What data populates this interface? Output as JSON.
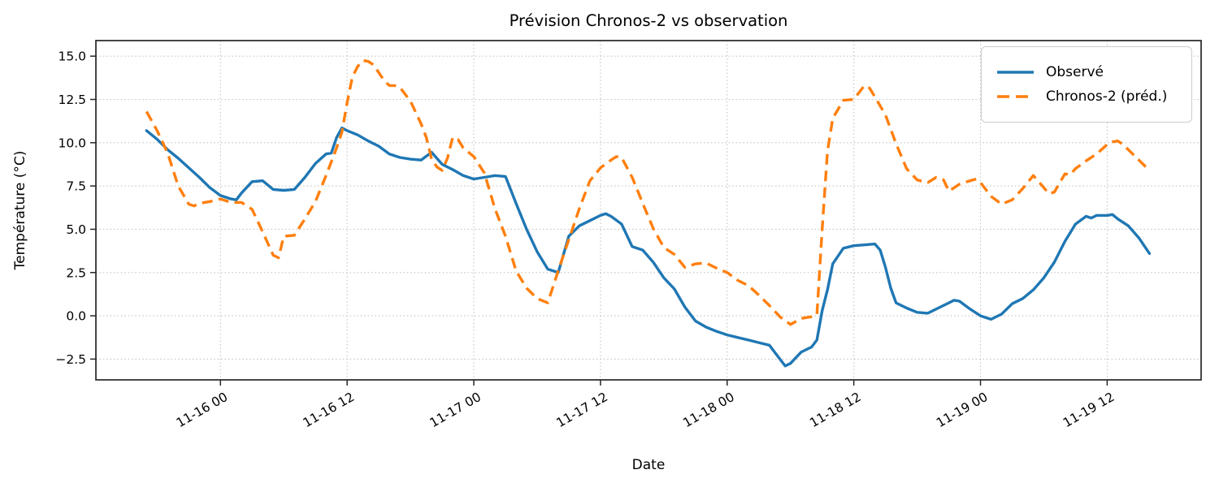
{
  "window": {
    "title": "Prévision Chronos-2 vs observation"
  },
  "chart_data": {
    "type": "line",
    "title": "Prévision Chronos-2 vs observation",
    "xlabel": "Date",
    "ylabel": "Température (°C)",
    "grid": true,
    "legend_position": "upper right",
    "xlim": [
      -4.8,
      99.9
    ],
    "ylim": [
      -3.7,
      15.9
    ],
    "x_axis_note": "x values are hours; 0 = first sample, ticks every 12 h",
    "xticks": [
      {
        "t": 7,
        "label": "11-16 00"
      },
      {
        "t": 19,
        "label": "11-16 12"
      },
      {
        "t": 31,
        "label": "11-17 00"
      },
      {
        "t": 43,
        "label": "11-17 12"
      },
      {
        "t": 55,
        "label": "11-18 00"
      },
      {
        "t": 67,
        "label": "11-18 12"
      },
      {
        "t": 79,
        "label": "11-19 00"
      },
      {
        "t": 91,
        "label": "11-19 12"
      }
    ],
    "yticks": [
      {
        "v": 15.0,
        "label": "15.0"
      },
      {
        "v": 12.5,
        "label": "12.5"
      },
      {
        "v": 10.0,
        "label": "10.0"
      },
      {
        "v": 7.5,
        "label": "7.5"
      },
      {
        "v": 5.0,
        "label": "5.0"
      },
      {
        "v": 2.5,
        "label": "2.5"
      },
      {
        "v": 0.0,
        "label": "0.0"
      },
      {
        "v": -2.5,
        "label": "−2.5"
      }
    ],
    "series": [
      {
        "name": "Observé",
        "color": "#1f77b4",
        "style": "solid",
        "line_width": 3.4,
        "points": [
          [
            0,
            10.7
          ],
          [
            1,
            10.2
          ],
          [
            2,
            9.6
          ],
          [
            3,
            9.1
          ],
          [
            4,
            8.55
          ],
          [
            5,
            8.0
          ],
          [
            6,
            7.4
          ],
          [
            7,
            6.95
          ],
          [
            8,
            6.75
          ],
          [
            8.5,
            6.7
          ],
          [
            9,
            7.1
          ],
          [
            10,
            7.75
          ],
          [
            11,
            7.8
          ],
          [
            12,
            7.3
          ],
          [
            13,
            7.25
          ],
          [
            14,
            7.3
          ],
          [
            15,
            8.0
          ],
          [
            16,
            8.8
          ],
          [
            17,
            9.35
          ],
          [
            17.5,
            9.4
          ],
          [
            18,
            10.3
          ],
          [
            18.5,
            10.85
          ],
          [
            19,
            10.7
          ],
          [
            20,
            10.45
          ],
          [
            21,
            10.1
          ],
          [
            22,
            9.8
          ],
          [
            23,
            9.35
          ],
          [
            24,
            9.15
          ],
          [
            25,
            9.05
          ],
          [
            26,
            9.0
          ],
          [
            27,
            9.45
          ],
          [
            28,
            8.75
          ],
          [
            29,
            8.45
          ],
          [
            30,
            8.1
          ],
          [
            31,
            7.9
          ],
          [
            32,
            8.0
          ],
          [
            33,
            8.1
          ],
          [
            34,
            8.05
          ],
          [
            35,
            6.5
          ],
          [
            36,
            5.0
          ],
          [
            37,
            3.7
          ],
          [
            38,
            2.7
          ],
          [
            39,
            2.5
          ],
          [
            40,
            4.6
          ],
          [
            41,
            5.2
          ],
          [
            42,
            5.5
          ],
          [
            43,
            5.8
          ],
          [
            43.5,
            5.9
          ],
          [
            44,
            5.75
          ],
          [
            45,
            5.3
          ],
          [
            46,
            4.0
          ],
          [
            47,
            3.8
          ],
          [
            48,
            3.1
          ],
          [
            49,
            2.2
          ],
          [
            50,
            1.55
          ],
          [
            51,
            0.5
          ],
          [
            52,
            -0.3
          ],
          [
            53,
            -0.65
          ],
          [
            54,
            -0.9
          ],
          [
            55,
            -1.1
          ],
          [
            56,
            -1.25
          ],
          [
            57,
            -1.4
          ],
          [
            58,
            -1.55
          ],
          [
            59,
            -1.7
          ],
          [
            60,
            -2.5
          ],
          [
            60.5,
            -2.9
          ],
          [
            61,
            -2.75
          ],
          [
            62,
            -2.1
          ],
          [
            63,
            -1.8
          ],
          [
            63.5,
            -1.4
          ],
          [
            64,
            0.3
          ],
          [
            64.5,
            1.5
          ],
          [
            65,
            3.0
          ],
          [
            66,
            3.9
          ],
          [
            67,
            4.05
          ],
          [
            68,
            4.1
          ],
          [
            69,
            4.15
          ],
          [
            69.5,
            3.8
          ],
          [
            70,
            2.8
          ],
          [
            70.5,
            1.6
          ],
          [
            71,
            0.75
          ],
          [
            72,
            0.45
          ],
          [
            73,
            0.2
          ],
          [
            74,
            0.15
          ],
          [
            75,
            0.45
          ],
          [
            76,
            0.75
          ],
          [
            76.5,
            0.9
          ],
          [
            77,
            0.85
          ],
          [
            78,
            0.4
          ],
          [
            79,
            0.0
          ],
          [
            80,
            -0.2
          ],
          [
            81,
            0.1
          ],
          [
            82,
            0.7
          ],
          [
            83,
            1.0
          ],
          [
            84,
            1.5
          ],
          [
            85,
            2.2
          ],
          [
            86,
            3.1
          ],
          [
            87,
            4.3
          ],
          [
            88,
            5.3
          ],
          [
            89,
            5.75
          ],
          [
            89.5,
            5.65
          ],
          [
            90,
            5.8
          ],
          [
            91,
            5.8
          ],
          [
            91.5,
            5.85
          ],
          [
            92,
            5.6
          ],
          [
            93,
            5.2
          ],
          [
            94,
            4.5
          ],
          [
            95,
            3.6
          ]
        ]
      },
      {
        "name": "Chronos-2 (préd.)",
        "color": "#ff7f0e",
        "style": "dashed",
        "line_width": 3.4,
        "points": [
          [
            0,
            11.8
          ],
          [
            1,
            10.7
          ],
          [
            2,
            9.4
          ],
          [
            3,
            7.5
          ],
          [
            4,
            6.45
          ],
          [
            4.5,
            6.35
          ],
          [
            5,
            6.5
          ],
          [
            6,
            6.6
          ],
          [
            7,
            6.75
          ],
          [
            8,
            6.55
          ],
          [
            9,
            6.55
          ],
          [
            10,
            6.15
          ],
          [
            11,
            4.85
          ],
          [
            12,
            3.5
          ],
          [
            12.5,
            3.35
          ],
          [
            13,
            4.6
          ],
          [
            14,
            4.65
          ],
          [
            15,
            5.6
          ],
          [
            16,
            6.6
          ],
          [
            17,
            8.1
          ],
          [
            18,
            9.7
          ],
          [
            18.5,
            10.6
          ],
          [
            19,
            12.3
          ],
          [
            19.5,
            13.8
          ],
          [
            20,
            14.4
          ],
          [
            20.5,
            14.75
          ],
          [
            21,
            14.7
          ],
          [
            21.5,
            14.5
          ],
          [
            22,
            14.05
          ],
          [
            22.5,
            13.6
          ],
          [
            23,
            13.3
          ],
          [
            23.5,
            13.3
          ],
          [
            24,
            13.2
          ],
          [
            25,
            12.4
          ],
          [
            26,
            11.1
          ],
          [
            26.5,
            10.3
          ],
          [
            27,
            9.05
          ],
          [
            27.5,
            8.6
          ],
          [
            28,
            8.4
          ],
          [
            28.5,
            9.1
          ],
          [
            29,
            10.3
          ],
          [
            29.5,
            10.2
          ],
          [
            30,
            9.7
          ],
          [
            31,
            9.2
          ],
          [
            32,
            8.25
          ],
          [
            33,
            6.2
          ],
          [
            34,
            4.6
          ],
          [
            35,
            2.6
          ],
          [
            36,
            1.6
          ],
          [
            37,
            1.0
          ],
          [
            38,
            0.75
          ],
          [
            39,
            2.6
          ],
          [
            40,
            4.4
          ],
          [
            41,
            6.2
          ],
          [
            42,
            7.8
          ],
          [
            43,
            8.55
          ],
          [
            44,
            9.0
          ],
          [
            44.5,
            9.2
          ],
          [
            45,
            9.15
          ],
          [
            46,
            8.0
          ],
          [
            47,
            6.5
          ],
          [
            48,
            5.05
          ],
          [
            49,
            3.95
          ],
          [
            50,
            3.55
          ],
          [
            51,
            2.8
          ],
          [
            52,
            3.0
          ],
          [
            53,
            3.05
          ],
          [
            54,
            2.75
          ],
          [
            55,
            2.5
          ],
          [
            56,
            2.05
          ],
          [
            57,
            1.75
          ],
          [
            58,
            1.2
          ],
          [
            59,
            0.6
          ],
          [
            60,
            -0.05
          ],
          [
            61,
            -0.5
          ],
          [
            62,
            -0.15
          ],
          [
            63,
            -0.05
          ],
          [
            63.5,
            0.05
          ],
          [
            64,
            5.0
          ],
          [
            64.5,
            9.5
          ],
          [
            65,
            11.4
          ],
          [
            66,
            12.45
          ],
          [
            67,
            12.5
          ],
          [
            67.5,
            12.9
          ],
          [
            68,
            13.3
          ],
          [
            68.5,
            13.15
          ],
          [
            69,
            12.65
          ],
          [
            70,
            11.6
          ],
          [
            71,
            9.95
          ],
          [
            72,
            8.5
          ],
          [
            73,
            7.85
          ],
          [
            74,
            7.7
          ],
          [
            74.8,
            8.0
          ],
          [
            75.5,
            7.85
          ],
          [
            76,
            7.2
          ],
          [
            77,
            7.6
          ],
          [
            78,
            7.8
          ],
          [
            78.6,
            7.9
          ],
          [
            79,
            7.7
          ],
          [
            80,
            6.9
          ],
          [
            81,
            6.45
          ],
          [
            82,
            6.7
          ],
          [
            83,
            7.35
          ],
          [
            84,
            8.1
          ],
          [
            85,
            7.4
          ],
          [
            85.5,
            7.05
          ],
          [
            86,
            7.15
          ],
          [
            87,
            8.2
          ],
          [
            87.5,
            8.15
          ],
          [
            88,
            8.5
          ],
          [
            89,
            8.95
          ],
          [
            90,
            9.35
          ],
          [
            91,
            9.9
          ],
          [
            91.5,
            10.05
          ],
          [
            92,
            10.1
          ],
          [
            92.5,
            9.9
          ],
          [
            93,
            9.6
          ],
          [
            94,
            9.0
          ],
          [
            95,
            8.4
          ]
        ]
      }
    ],
    "colors": {
      "observed": "#1f77b4",
      "forecast": "#ff7f0e",
      "grid": "#bdbdbd",
      "spine": "#262626",
      "text": "#000000"
    }
  }
}
